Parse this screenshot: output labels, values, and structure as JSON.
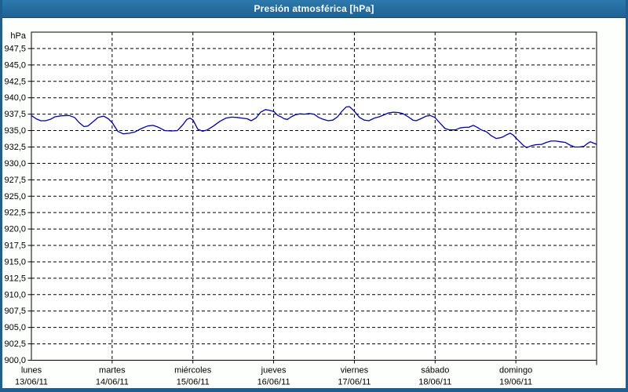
{
  "window": {
    "title": "Presión atmosférica [hPa]"
  },
  "colors": {
    "titlebar_bg": "#2373a8",
    "titlebar_text": "#ffffff",
    "window_border": "#1e5e90",
    "plot_bg": "#ffffff",
    "grid_color": "#000000",
    "axis_color": "#000000",
    "label_color": "#000000",
    "line_color": "#0000b4"
  },
  "chart_data": {
    "type": "line",
    "title": "Presión atmosférica [hPa]",
    "y_axis": {
      "unit_label": "hPa",
      "min": 900,
      "max": 950,
      "tick_step": 2.5,
      "tick_labels": [
        "947,5",
        "945,0",
        "942,5",
        "940,0",
        "937,5",
        "935,0",
        "932,5",
        "930,0",
        "927,5",
        "925,0",
        "922,5",
        "920,0",
        "917,5",
        "915,0",
        "912,5",
        "910,0",
        "907,5",
        "905,0",
        "902,5",
        "900,0"
      ],
      "tick_values": [
        947.5,
        945,
        942.5,
        940,
        937.5,
        935,
        932.5,
        930,
        927.5,
        925,
        922.5,
        920,
        917.5,
        915,
        912.5,
        910,
        907.5,
        905,
        902.5,
        900
      ]
    },
    "x_axis": {
      "span_days": 7,
      "days": [
        {
          "name": "lunes",
          "date": "13/06/11"
        },
        {
          "name": "martes",
          "date": "14/06/11"
        },
        {
          "name": "miércoles",
          "date": "15/06/11"
        },
        {
          "name": "jueves",
          "date": "16/06/11"
        },
        {
          "name": "viernes",
          "date": "17/06/11"
        },
        {
          "name": "sábado",
          "date": "18/06/11"
        },
        {
          "name": "domingo",
          "date": "19/06/11"
        }
      ]
    },
    "grid": {
      "horizontal": "dashed",
      "vertical": "dashed",
      "color": "#000000"
    },
    "legend": "none",
    "series": [
      {
        "name": "Presión atmosférica",
        "color": "#0000b4",
        "points_t_days_hpa": [
          [
            0,
            937.3
          ],
          [
            0.058,
            936.8
          ],
          [
            0.117,
            936.5
          ],
          [
            0.175,
            936.5
          ],
          [
            0.233,
            936.7
          ],
          [
            0.292,
            937.1
          ],
          [
            0.369,
            937.25
          ],
          [
            0.467,
            937.3
          ],
          [
            0.535,
            937.0
          ],
          [
            0.593,
            936.2
          ],
          [
            0.651,
            935.6
          ],
          [
            0.7,
            935.7
          ],
          [
            0.758,
            936.3
          ],
          [
            0.826,
            937.0
          ],
          [
            0.894,
            937.2
          ],
          [
            0.953,
            936.8
          ],
          [
            1.001,
            936.2
          ],
          [
            1.069,
            934.9
          ],
          [
            1.137,
            934.5
          ],
          [
            1.215,
            934.6
          ],
          [
            1.283,
            934.8
          ],
          [
            1.361,
            935.3
          ],
          [
            1.439,
            935.7
          ],
          [
            1.507,
            935.8
          ],
          [
            1.575,
            935.5
          ],
          [
            1.653,
            935.0
          ],
          [
            1.731,
            934.95
          ],
          [
            1.808,
            935.0
          ],
          [
            1.876,
            935.9
          ],
          [
            1.925,
            936.7
          ],
          [
            1.964,
            936.9
          ],
          [
            2.003,
            936.6
          ],
          [
            2.061,
            935.2
          ],
          [
            2.12,
            934.9
          ],
          [
            2.178,
            935.1
          ],
          [
            2.256,
            935.7
          ],
          [
            2.333,
            936.4
          ],
          [
            2.411,
            936.9
          ],
          [
            2.479,
            937.05
          ],
          [
            2.547,
            937.0
          ],
          [
            2.606,
            936.9
          ],
          [
            2.674,
            936.8
          ],
          [
            2.722,
            936.5
          ],
          [
            2.781,
            936.9
          ],
          [
            2.839,
            937.8
          ],
          [
            2.897,
            938.2
          ],
          [
            2.946,
            938.1
          ],
          [
            3.004,
            937.9
          ],
          [
            3.053,
            937.3
          ],
          [
            3.092,
            937.1
          ],
          [
            3.131,
            936.8
          ],
          [
            3.17,
            936.7
          ],
          [
            3.218,
            937.1
          ],
          [
            3.267,
            937.4
          ],
          [
            3.325,
            937.55
          ],
          [
            3.383,
            937.5
          ],
          [
            3.442,
            937.6
          ],
          [
            3.5,
            937.5
          ],
          [
            3.558,
            937.0
          ],
          [
            3.617,
            936.7
          ],
          [
            3.675,
            936.5
          ],
          [
            3.733,
            936.6
          ],
          [
            3.792,
            937.1
          ],
          [
            3.85,
            938.0
          ],
          [
            3.899,
            938.6
          ],
          [
            3.938,
            938.65
          ],
          [
            3.996,
            938.0
          ],
          [
            4.064,
            937.0
          ],
          [
            4.122,
            936.6
          ],
          [
            4.181,
            936.5
          ],
          [
            4.249,
            936.9
          ],
          [
            4.307,
            937.1
          ],
          [
            4.365,
            937.4
          ],
          [
            4.424,
            937.7
          ],
          [
            4.482,
            937.8
          ],
          [
            4.54,
            937.75
          ],
          [
            4.599,
            937.6
          ],
          [
            4.667,
            937.1
          ],
          [
            4.725,
            936.6
          ],
          [
            4.764,
            936.5
          ],
          [
            4.822,
            936.8
          ],
          [
            4.89,
            937.2
          ],
          [
            4.939,
            937.3
          ],
          [
            4.997,
            937.0
          ],
          [
            5.056,
            936.2
          ],
          [
            5.124,
            935.3
          ],
          [
            5.182,
            935.1
          ],
          [
            5.25,
            935.1
          ],
          [
            5.308,
            935.4
          ],
          [
            5.367,
            935.5
          ],
          [
            5.415,
            935.5
          ],
          [
            5.474,
            935.8
          ],
          [
            5.522,
            935.5
          ],
          [
            5.571,
            935.1
          ],
          [
            5.639,
            934.8
          ],
          [
            5.697,
            934.2
          ],
          [
            5.756,
            933.8
          ],
          [
            5.804,
            933.9
          ],
          [
            5.833,
            934.0
          ],
          [
            5.892,
            934.4
          ],
          [
            5.931,
            934.6
          ],
          [
            5.969,
            934.3
          ],
          [
            5.999,
            933.9
          ],
          [
            6.047,
            933.3
          ],
          [
            6.096,
            932.7
          ],
          [
            6.135,
            932.4
          ],
          [
            6.193,
            932.7
          ],
          [
            6.251,
            932.85
          ],
          [
            6.319,
            932.9
          ],
          [
            6.378,
            933.2
          ],
          [
            6.436,
            933.4
          ],
          [
            6.494,
            933.4
          ],
          [
            6.553,
            933.3
          ],
          [
            6.611,
            933.2
          ],
          [
            6.669,
            932.8
          ],
          [
            6.728,
            932.5
          ],
          [
            6.786,
            932.5
          ],
          [
            6.844,
            932.6
          ],
          [
            6.883,
            933.0
          ],
          [
            6.922,
            933.3
          ],
          [
            6.961,
            933.1
          ],
          [
            7,
            932.9
          ]
        ]
      }
    ]
  }
}
